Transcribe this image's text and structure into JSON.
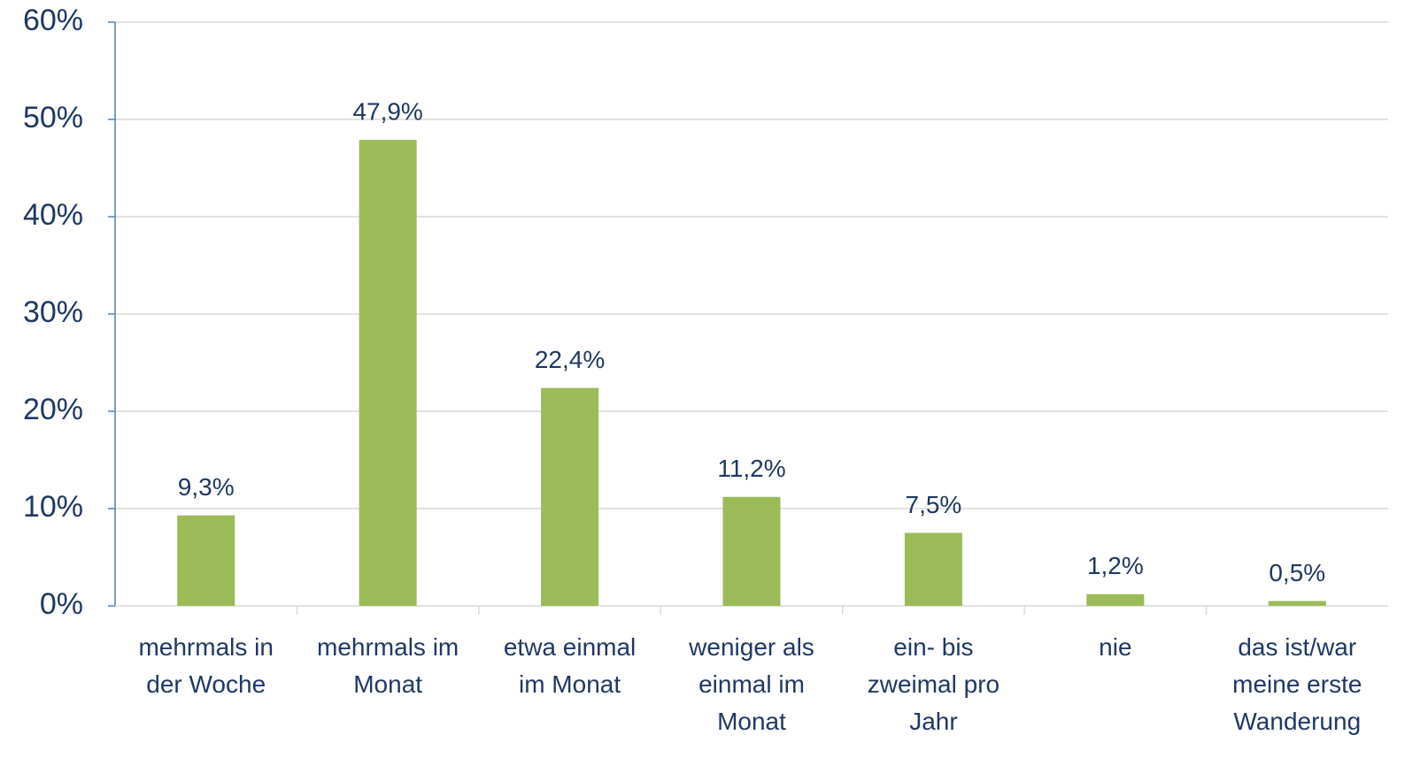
{
  "chart_data": {
    "type": "bar",
    "categories": [
      "mehrmals in der Woche",
      "mehrmals im Monat",
      "etwa einmal im Monat",
      "weniger als einmal im Monat",
      "ein- bis zweimal pro Jahr",
      "nie",
      "das ist/war meine erste Wanderung"
    ],
    "values": [
      9.3,
      47.9,
      22.4,
      11.2,
      7.5,
      1.2,
      0.5
    ],
    "value_labels": [
      "9,3%",
      "47,9%",
      "22,4%",
      "11,2%",
      "7,5%",
      "1,2%",
      "0,5%"
    ],
    "color": "#9bbb59",
    "ylim": [
      0,
      60
    ],
    "yticks": [
      {
        "value": 0,
        "label": "0%"
      },
      {
        "value": 10,
        "label": "10%"
      },
      {
        "value": 20,
        "label": "20%"
      },
      {
        "value": 30,
        "label": "30%"
      },
      {
        "value": 40,
        "label": "40%"
      },
      {
        "value": 50,
        "label": "50%"
      },
      {
        "value": 60,
        "label": "60%"
      }
    ],
    "grid": true
  }
}
